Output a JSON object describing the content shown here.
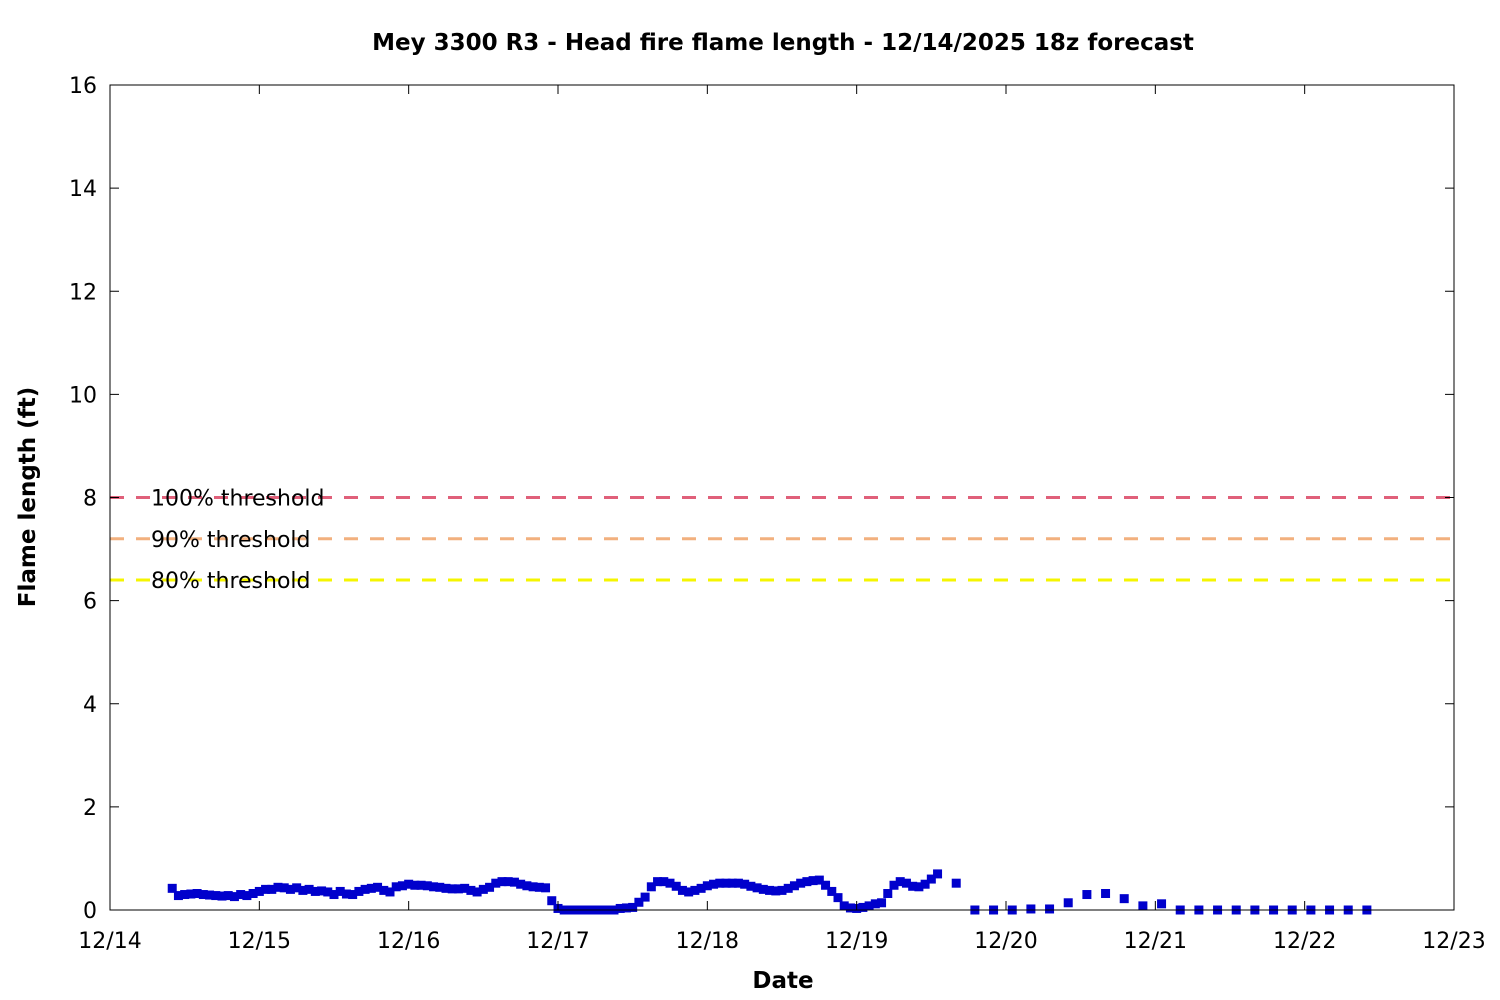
{
  "chart_data": {
    "type": "scatter",
    "title": "Mey 3300 R3 - Head fire flame length - 12/14/2025 18z forecast",
    "xlabel": "Date",
    "ylabel": "Flame length (ft)",
    "x_unit": "days since 12/14",
    "xlim": [
      "12/14",
      "12/23"
    ],
    "ylim": [
      0,
      16
    ],
    "x_tick_labels": [
      "12/14",
      "12/15",
      "12/16",
      "12/17",
      "12/18",
      "12/19",
      "12/20",
      "12/21",
      "12/22",
      "12/23"
    ],
    "y_ticks": [
      0,
      2,
      4,
      6,
      8,
      10,
      12,
      14,
      16
    ],
    "y_tick_labels": [
      "0",
      "2",
      "4",
      "6",
      "8",
      "10",
      "12",
      "14",
      "16"
    ],
    "grid": false,
    "thresholds": [
      {
        "label": "100% threshold",
        "value": 8.0,
        "color": "#e0607a"
      },
      {
        "label": "90% threshold",
        "value": 7.2,
        "color": "#f2b07e"
      },
      {
        "label": "80% threshold",
        "value": 6.4,
        "color": "#f5f500"
      }
    ],
    "series": [
      {
        "color": "#0000cc",
        "marker": "square",
        "points": [
          [
            "12/14 10:00",
            0.42
          ],
          [
            "12/14 11:00",
            0.28
          ],
          [
            "12/14 12:00",
            0.3
          ],
          [
            "12/14 13:00",
            0.31
          ],
          [
            "12/14 14:00",
            0.32
          ],
          [
            "12/14 15:00",
            0.3
          ],
          [
            "12/14 16:00",
            0.29
          ],
          [
            "12/14 17:00",
            0.28
          ],
          [
            "12/14 18:00",
            0.27
          ],
          [
            "12/14 19:00",
            0.28
          ],
          [
            "12/14 20:00",
            0.26
          ],
          [
            "12/14 21:00",
            0.3
          ],
          [
            "12/14 22:00",
            0.28
          ],
          [
            "12/14 23:00",
            0.32
          ],
          [
            "12/15 00:00",
            0.36
          ],
          [
            "12/15 01:00",
            0.4
          ],
          [
            "12/15 02:00",
            0.4
          ],
          [
            "12/15 03:00",
            0.44
          ],
          [
            "12/15 04:00",
            0.43
          ],
          [
            "12/15 05:00",
            0.4
          ],
          [
            "12/15 06:00",
            0.43
          ],
          [
            "12/15 07:00",
            0.38
          ],
          [
            "12/15 08:00",
            0.4
          ],
          [
            "12/15 09:00",
            0.36
          ],
          [
            "12/15 10:00",
            0.37
          ],
          [
            "12/15 11:00",
            0.35
          ],
          [
            "12/15 12:00",
            0.3
          ],
          [
            "12/15 13:00",
            0.36
          ],
          [
            "12/15 14:00",
            0.31
          ],
          [
            "12/15 15:00",
            0.3
          ],
          [
            "12/15 16:00",
            0.36
          ],
          [
            "12/15 17:00",
            0.4
          ],
          [
            "12/15 18:00",
            0.42
          ],
          [
            "12/15 19:00",
            0.44
          ],
          [
            "12/15 20:00",
            0.38
          ],
          [
            "12/15 21:00",
            0.35
          ],
          [
            "12/15 22:00",
            0.45
          ],
          [
            "12/15 23:00",
            0.47
          ],
          [
            "12/16 00:00",
            0.5
          ],
          [
            "12/16 01:00",
            0.48
          ],
          [
            "12/16 02:00",
            0.48
          ],
          [
            "12/16 03:00",
            0.47
          ],
          [
            "12/16 04:00",
            0.45
          ],
          [
            "12/16 05:00",
            0.44
          ],
          [
            "12/16 06:00",
            0.42
          ],
          [
            "12/16 07:00",
            0.41
          ],
          [
            "12/16 08:00",
            0.41
          ],
          [
            "12/16 09:00",
            0.42
          ],
          [
            "12/16 10:00",
            0.38
          ],
          [
            "12/16 11:00",
            0.35
          ],
          [
            "12/16 12:00",
            0.4
          ],
          [
            "12/16 13:00",
            0.44
          ],
          [
            "12/16 14:00",
            0.52
          ],
          [
            "12/16 15:00",
            0.55
          ],
          [
            "12/16 16:00",
            0.55
          ],
          [
            "12/16 17:00",
            0.54
          ],
          [
            "12/16 18:00",
            0.5
          ],
          [
            "12/16 19:00",
            0.47
          ],
          [
            "12/16 20:00",
            0.45
          ],
          [
            "12/16 21:00",
            0.44
          ],
          [
            "12/16 22:00",
            0.43
          ],
          [
            "12/16 23:00",
            0.18
          ],
          [
            "12/17 00:00",
            0.03
          ],
          [
            "12/17 01:00",
            0.0
          ],
          [
            "12/17 02:00",
            0.0
          ],
          [
            "12/17 03:00",
            0.0
          ],
          [
            "12/17 04:00",
            0.0
          ],
          [
            "12/17 05:00",
            0.0
          ],
          [
            "12/17 06:00",
            0.0
          ],
          [
            "12/17 07:00",
            0.0
          ],
          [
            "12/17 08:00",
            0.0
          ],
          [
            "12/17 09:00",
            0.0
          ],
          [
            "12/17 10:00",
            0.03
          ],
          [
            "12/17 11:00",
            0.04
          ],
          [
            "12/17 12:00",
            0.05
          ],
          [
            "12/17 13:00",
            0.15
          ],
          [
            "12/17 14:00",
            0.25
          ],
          [
            "12/17 15:00",
            0.45
          ],
          [
            "12/17 16:00",
            0.55
          ],
          [
            "12/17 17:00",
            0.55
          ],
          [
            "12/17 18:00",
            0.52
          ],
          [
            "12/17 19:00",
            0.46
          ],
          [
            "12/17 20:00",
            0.38
          ],
          [
            "12/17 21:00",
            0.35
          ],
          [
            "12/17 22:00",
            0.38
          ],
          [
            "12/17 23:00",
            0.42
          ],
          [
            "12/18 00:00",
            0.47
          ],
          [
            "12/18 01:00",
            0.5
          ],
          [
            "12/18 02:00",
            0.52
          ],
          [
            "12/18 03:00",
            0.52
          ],
          [
            "12/18 04:00",
            0.52
          ],
          [
            "12/18 05:00",
            0.52
          ],
          [
            "12/18 06:00",
            0.5
          ],
          [
            "12/18 07:00",
            0.46
          ],
          [
            "12/18 08:00",
            0.43
          ],
          [
            "12/18 09:00",
            0.4
          ],
          [
            "12/18 10:00",
            0.38
          ],
          [
            "12/18 11:00",
            0.37
          ],
          [
            "12/18 12:00",
            0.38
          ],
          [
            "12/18 13:00",
            0.42
          ],
          [
            "12/18 14:00",
            0.47
          ],
          [
            "12/18 15:00",
            0.52
          ],
          [
            "12/18 16:00",
            0.55
          ],
          [
            "12/18 17:00",
            0.57
          ],
          [
            "12/18 18:00",
            0.58
          ],
          [
            "12/18 19:00",
            0.48
          ],
          [
            "12/18 20:00",
            0.36
          ],
          [
            "12/18 21:00",
            0.24
          ],
          [
            "12/18 22:00",
            0.08
          ],
          [
            "12/18 23:00",
            0.04
          ],
          [
            "12/19 00:00",
            0.03
          ],
          [
            "12/19 01:00",
            0.05
          ],
          [
            "12/19 02:00",
            0.08
          ],
          [
            "12/19 03:00",
            0.12
          ],
          [
            "12/19 04:00",
            0.14
          ],
          [
            "12/19 05:00",
            0.32
          ],
          [
            "12/19 06:00",
            0.48
          ],
          [
            "12/19 07:00",
            0.55
          ],
          [
            "12/19 08:00",
            0.52
          ],
          [
            "12/19 09:00",
            0.46
          ],
          [
            "12/19 10:00",
            0.45
          ],
          [
            "12/19 11:00",
            0.5
          ],
          [
            "12/19 12:00",
            0.6
          ],
          [
            "12/19 13:00",
            0.7
          ],
          [
            "12/19 16:00",
            0.52
          ],
          [
            "12/19 19:00",
            0.0
          ],
          [
            "12/19 22:00",
            0.0
          ],
          [
            "12/20 01:00",
            0.0
          ],
          [
            "12/20 04:00",
            0.02
          ],
          [
            "12/20 07:00",
            0.02
          ],
          [
            "12/20 10:00",
            0.14
          ],
          [
            "12/20 13:00",
            0.3
          ],
          [
            "12/20 16:00",
            0.32
          ],
          [
            "12/20 19:00",
            0.22
          ],
          [
            "12/20 22:00",
            0.08
          ],
          [
            "12/21 01:00",
            0.12
          ],
          [
            "12/21 04:00",
            0.0
          ],
          [
            "12/21 07:00",
            0.0
          ],
          [
            "12/21 10:00",
            0.0
          ],
          [
            "12/21 13:00",
            0.0
          ],
          [
            "12/21 16:00",
            0.0
          ],
          [
            "12/21 19:00",
            0.0
          ],
          [
            "12/21 22:00",
            0.0
          ],
          [
            "12/22 01:00",
            0.0
          ],
          [
            "12/22 04:00",
            0.0
          ],
          [
            "12/22 07:00",
            0.0
          ],
          [
            "12/22 10:00",
            0.0
          ]
        ]
      }
    ]
  }
}
